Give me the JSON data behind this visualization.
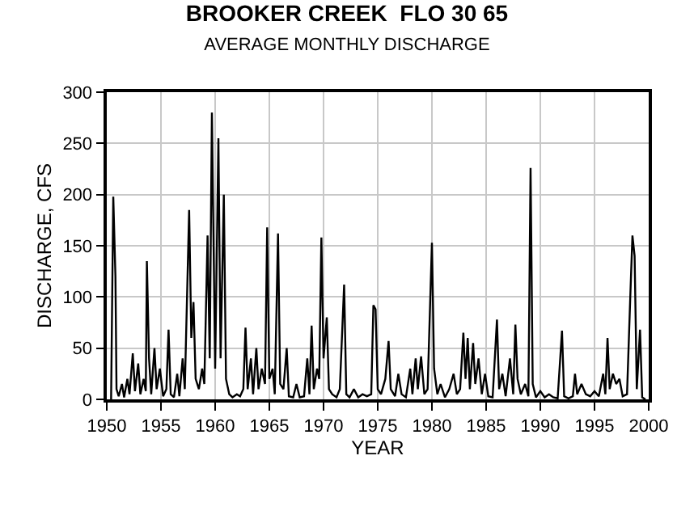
{
  "chart_data": {
    "type": "line",
    "title": "BROOKER CREEK  FLO 30 65",
    "subtitle": "AVERAGE MONTHLY DISCHARGE",
    "xlabel": "YEAR",
    "ylabel": "DISCHARGE, CFS",
    "x": [
      1950.4,
      1950.6,
      1950.8,
      1950.9,
      1951.1,
      1951.4,
      1951.6,
      1951.9,
      1952.1,
      1952.4,
      1952.6,
      1952.9,
      1953.1,
      1953.4,
      1953.6,
      1953.7,
      1953.9,
      1954.1,
      1954.4,
      1954.6,
      1954.9,
      1955.2,
      1955.5,
      1955.7,
      1955.9,
      1956.2,
      1956.5,
      1956.7,
      1957.0,
      1957.2,
      1957.6,
      1957.8,
      1958.0,
      1958.2,
      1958.5,
      1958.8,
      1959.0,
      1959.3,
      1959.5,
      1959.7,
      1960.0,
      1960.3,
      1960.5,
      1960.8,
      1961.0,
      1961.3,
      1961.6,
      1962.0,
      1962.3,
      1962.6,
      1962.8,
      1963.0,
      1963.3,
      1963.5,
      1963.8,
      1964.0,
      1964.3,
      1964.6,
      1964.8,
      1965.0,
      1965.3,
      1965.5,
      1965.8,
      1966.0,
      1966.3,
      1966.6,
      1966.8,
      1967.2,
      1967.5,
      1967.8,
      1968.2,
      1968.5,
      1968.7,
      1968.9,
      1969.1,
      1969.4,
      1969.6,
      1969.8,
      1970.0,
      1970.3,
      1970.5,
      1970.8,
      1971.2,
      1971.5,
      1971.9,
      1972.1,
      1972.4,
      1972.8,
      1973.2,
      1973.6,
      1974.0,
      1974.4,
      1974.6,
      1974.8,
      1975.0,
      1975.3,
      1975.7,
      1976.0,
      1976.2,
      1976.6,
      1976.9,
      1977.2,
      1977.6,
      1978.0,
      1978.2,
      1978.5,
      1978.7,
      1979.0,
      1979.3,
      1979.6,
      1980.0,
      1980.2,
      1980.5,
      1980.8,
      1981.2,
      1981.6,
      1982.0,
      1982.3,
      1982.6,
      1982.9,
      1983.1,
      1983.3,
      1983.5,
      1983.8,
      1984.0,
      1984.3,
      1984.6,
      1984.9,
      1985.2,
      1985.6,
      1986.0,
      1986.2,
      1986.5,
      1986.8,
      1987.2,
      1987.5,
      1987.7,
      1987.9,
      1988.2,
      1988.6,
      1988.9,
      1989.1,
      1989.3,
      1989.6,
      1990.0,
      1990.4,
      1990.8,
      1991.2,
      1991.6,
      1992.0,
      1992.2,
      1992.6,
      1993.0,
      1993.2,
      1993.4,
      1993.8,
      1994.2,
      1994.6,
      1995.0,
      1995.4,
      1995.8,
      1996.0,
      1996.2,
      1996.4,
      1996.7,
      1997.0,
      1997.3,
      1997.6,
      1998.0,
      1998.3,
      1998.5,
      1998.7,
      1998.9,
      1999.2,
      1999.4,
      1999.7
    ],
    "series": [
      {
        "color": "#000000",
        "values": [
          0,
          198,
          120,
          10,
          3,
          15,
          2,
          20,
          5,
          45,
          8,
          35,
          5,
          20,
          8,
          135,
          40,
          5,
          50,
          10,
          30,
          3,
          10,
          68,
          5,
          2,
          25,
          3,
          40,
          10,
          185,
          60,
          95,
          20,
          10,
          30,
          15,
          160,
          40,
          280,
          30,
          255,
          40,
          200,
          20,
          5,
          2,
          5,
          3,
          10,
          70,
          10,
          40,
          5,
          50,
          10,
          30,
          15,
          168,
          20,
          30,
          5,
          162,
          15,
          10,
          50,
          3,
          2,
          15,
          2,
          3,
          40,
          5,
          72,
          10,
          30,
          20,
          158,
          40,
          80,
          10,
          5,
          2,
          10,
          112,
          5,
          2,
          10,
          2,
          5,
          3,
          5,
          92,
          88,
          10,
          5,
          20,
          57,
          10,
          3,
          25,
          5,
          2,
          30,
          5,
          40,
          10,
          42,
          5,
          10,
          153,
          30,
          5,
          15,
          2,
          10,
          25,
          5,
          10,
          65,
          20,
          60,
          10,
          55,
          15,
          40,
          5,
          25,
          3,
          2,
          78,
          10,
          25,
          3,
          40,
          5,
          73,
          20,
          5,
          15,
          3,
          226,
          15,
          2,
          8,
          2,
          5,
          2,
          1,
          67,
          3,
          1,
          3,
          25,
          5,
          15,
          5,
          3,
          8,
          3,
          25,
          5,
          60,
          10,
          25,
          15,
          20,
          3,
          5,
          100,
          160,
          140,
          10,
          68,
          2,
          0
        ]
      }
    ],
    "xlim": [
      1950,
      2000
    ],
    "xticks": [
      1950,
      1955,
      1960,
      1965,
      1970,
      1975,
      1980,
      1985,
      1990,
      1995,
      2000
    ],
    "ylim": [
      0,
      300
    ],
    "yticks": [
      0,
      50,
      100,
      150,
      200,
      250,
      300
    ],
    "grid": true,
    "marker": "none",
    "line_style": "solid"
  }
}
